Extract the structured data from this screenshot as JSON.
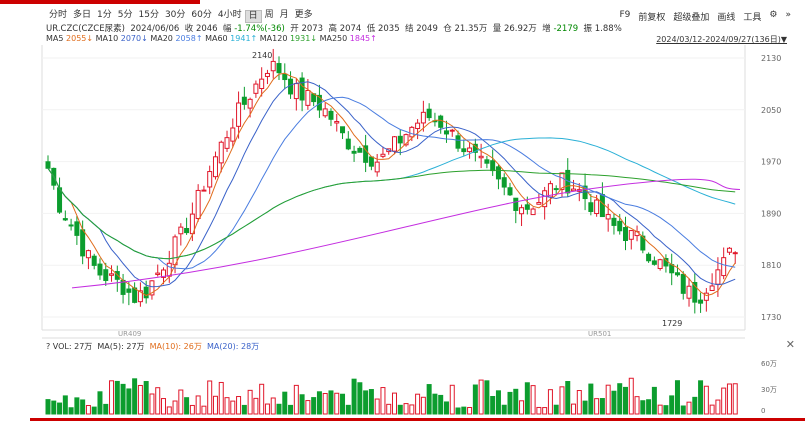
{
  "toolbar": {
    "timeframes": [
      "分时",
      "多日",
      "1分",
      "5分",
      "15分",
      "30分",
      "60分",
      "4小时",
      "日",
      "周",
      "月",
      "更多"
    ],
    "active": "日",
    "tools": [
      "F9",
      "前复权",
      "超级叠加",
      "画线",
      "工具",
      "⚙",
      "»"
    ]
  },
  "info": {
    "symbol": "UR.CZC(CZCE尿素)",
    "date": "2024/06/06",
    "open_label": "收",
    "close_val": "2046",
    "chg_label": "幅",
    "chg_val": "-1.74%(-36)",
    "o_label": "开",
    "o_val": "2073",
    "h_label": "高",
    "h_val": "2074",
    "l_label": "低",
    "l_val": "2035",
    "jie_label": "结",
    "jie_val": "2049",
    "he_label": "仓",
    "he_val": "21.35万",
    "vol_label": "量",
    "vol_val": "26.92万",
    "zeng_label": "增",
    "zeng_val": "-2179",
    "zhen_label": "振",
    "zhen_val": "1.88%"
  },
  "ma_legend": [
    {
      "name": "MA5",
      "val": "2055↓",
      "color": "#e06c1b"
    },
    {
      "name": "MA10",
      "val": "2070↓",
      "color": "#3a62c9"
    },
    {
      "name": "MA20",
      "val": "2058↑",
      "color": "#4a7de0"
    },
    {
      "name": "MA60",
      "val": "1941↑",
      "color": "#2ab0d6"
    },
    {
      "name": "MA120",
      "val": "1931↓",
      "color": "#2ca02c"
    },
    {
      "name": "MA250",
      "val": "1845↑",
      "color": "#c42ee0"
    }
  ],
  "range": "2024/03/12-2024/09/27(136日)▼",
  "y_ticks": [
    2130,
    2050,
    1970,
    1890,
    1810,
    1730
  ],
  "annotations": {
    "high": "2140",
    "low": "1729",
    "c1": "UR409",
    "c2": "UR501"
  },
  "vol_header": {
    "vol": "VOL: 27万",
    "ma5": "MA(5): 27万",
    "ma10": "MA(10): 26万",
    "ma20": "MA(20): 28万"
  },
  "vol_ticks": [
    "60万",
    "30万",
    "0"
  ],
  "colors": {
    "up": "#e0182b",
    "down": "#0c9d2e"
  }
}
